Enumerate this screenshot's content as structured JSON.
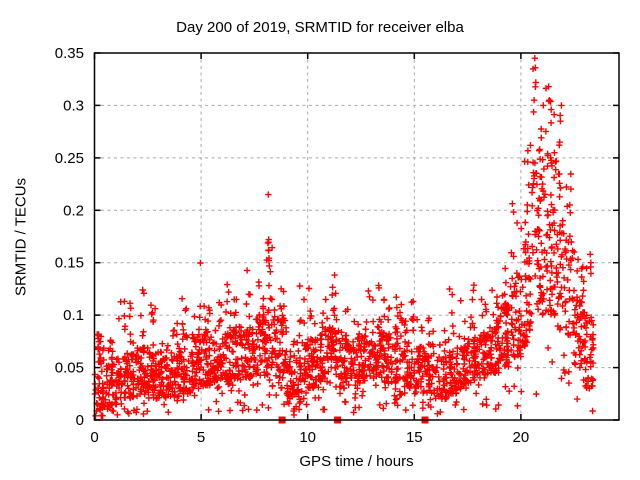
{
  "chart_data": {
    "type": "scatter",
    "title": "Day 200 of 2019, SRMTID for receiver elba",
    "xlabel": "GPS time / hours",
    "ylabel": "SRMTID / TECUs",
    "xlim": [
      0,
      24.6
    ],
    "ylim": [
      0,
      0.35
    ],
    "xticks": [
      0,
      5,
      10,
      15,
      20
    ],
    "xtick_labels": [
      "0",
      "5",
      "10",
      "15",
      "20"
    ],
    "yticks": [
      0,
      0.05,
      0.1,
      0.15,
      0.2,
      0.25,
      0.3,
      0.35
    ],
    "ytick_labels": [
      "0",
      "0.05",
      "0.1",
      "0.15",
      "0.2",
      "0.25",
      "0.3",
      "0.35"
    ],
    "grid": true,
    "grid_style": "dashed",
    "grid_color": "#a8a8a8",
    "legend": "none",
    "background": "#ffffff",
    "border_color": "#000000",
    "marker": {
      "shape": "plus",
      "color": "#ff0000",
      "size": 7
    },
    "seed": 2019200,
    "series": [
      {
        "name": "srmtid-scatter",
        "marker": "plus",
        "color": "#ff0000",
        "comment": "dense band envelope bins: [t_start, t_end, n_points, core_low, core_high, column_max] in hours / TECUs",
        "envelope_bins": [
          [
            0.0,
            0.5,
            55,
            0.008,
            0.075,
            0.085
          ],
          [
            0.5,
            1.0,
            50,
            0.012,
            0.055,
            0.08
          ],
          [
            1.0,
            1.5,
            50,
            0.015,
            0.06,
            0.115
          ],
          [
            1.5,
            2.0,
            50,
            0.02,
            0.065,
            0.12
          ],
          [
            2.0,
            2.5,
            55,
            0.022,
            0.07,
            0.125
          ],
          [
            2.5,
            3.0,
            50,
            0.02,
            0.065,
            0.11
          ],
          [
            3.0,
            3.5,
            50,
            0.02,
            0.06,
            0.1
          ],
          [
            3.5,
            4.0,
            50,
            0.022,
            0.065,
            0.095
          ],
          [
            4.0,
            4.5,
            50,
            0.025,
            0.07,
            0.12
          ],
          [
            4.5,
            5.0,
            55,
            0.03,
            0.08,
            0.15
          ],
          [
            5.0,
            5.5,
            55,
            0.032,
            0.085,
            0.14
          ],
          [
            5.5,
            6.0,
            50,
            0.03,
            0.08,
            0.12
          ],
          [
            6.0,
            6.5,
            55,
            0.033,
            0.085,
            0.13
          ],
          [
            6.5,
            7.0,
            50,
            0.038,
            0.09,
            0.12
          ],
          [
            7.0,
            7.5,
            55,
            0.04,
            0.09,
            0.15
          ],
          [
            7.5,
            8.0,
            55,
            0.042,
            0.1,
            0.155
          ],
          [
            8.0,
            8.5,
            55,
            0.05,
            0.11,
            0.175
          ],
          [
            8.5,
            9.0,
            55,
            0.04,
            0.1,
            0.135
          ],
          [
            9.0,
            9.5,
            45,
            0.02,
            0.06,
            0.09
          ],
          [
            9.5,
            10.0,
            50,
            0.025,
            0.075,
            0.13
          ],
          [
            10.0,
            10.5,
            55,
            0.03,
            0.08,
            0.135
          ],
          [
            10.5,
            11.0,
            50,
            0.035,
            0.085,
            0.12
          ],
          [
            11.0,
            11.5,
            55,
            0.04,
            0.09,
            0.14
          ],
          [
            11.5,
            12.0,
            50,
            0.03,
            0.075,
            0.11
          ],
          [
            12.0,
            12.5,
            50,
            0.03,
            0.07,
            0.1
          ],
          [
            12.5,
            13.0,
            50,
            0.035,
            0.08,
            0.13
          ],
          [
            13.0,
            13.5,
            55,
            0.04,
            0.09,
            0.14
          ],
          [
            13.5,
            14.0,
            50,
            0.035,
            0.085,
            0.12
          ],
          [
            14.0,
            14.5,
            50,
            0.035,
            0.08,
            0.13
          ],
          [
            14.5,
            15.0,
            50,
            0.03,
            0.075,
            0.12
          ],
          [
            15.0,
            15.5,
            50,
            0.025,
            0.07,
            0.1
          ],
          [
            15.5,
            16.0,
            45,
            0.025,
            0.065,
            0.1
          ],
          [
            16.0,
            16.5,
            45,
            0.02,
            0.06,
            0.09
          ],
          [
            16.5,
            17.0,
            50,
            0.025,
            0.065,
            0.14
          ],
          [
            17.0,
            17.5,
            50,
            0.03,
            0.07,
            0.12
          ],
          [
            17.5,
            18.0,
            50,
            0.035,
            0.08,
            0.13
          ],
          [
            18.0,
            18.5,
            50,
            0.04,
            0.085,
            0.12
          ],
          [
            18.5,
            19.0,
            55,
            0.045,
            0.095,
            0.15
          ],
          [
            19.0,
            19.5,
            55,
            0.05,
            0.11,
            0.16
          ],
          [
            19.5,
            20.0,
            55,
            0.06,
            0.14,
            0.22
          ],
          [
            20.0,
            20.5,
            55,
            0.07,
            0.19,
            0.27
          ],
          [
            20.5,
            21.0,
            60,
            0.1,
            0.25,
            0.34
          ],
          [
            21.0,
            21.5,
            60,
            0.1,
            0.26,
            0.33
          ],
          [
            21.5,
            22.0,
            55,
            0.1,
            0.24,
            0.31
          ],
          [
            22.0,
            22.5,
            50,
            0.08,
            0.18,
            0.24
          ],
          [
            22.5,
            23.0,
            50,
            0.05,
            0.12,
            0.165
          ],
          [
            23.0,
            23.4,
            45,
            0.03,
            0.1,
            0.155
          ]
        ],
        "feature_points": [
          [
            8.15,
            0.215
          ],
          [
            8.17,
            0.172
          ],
          [
            8.17,
            0.162
          ],
          [
            8.18,
            0.152
          ],
          [
            8.2,
            0.147
          ],
          [
            20.65,
            0.345
          ],
          [
            20.68,
            0.336
          ],
          [
            20.7,
            0.322
          ],
          [
            20.62,
            0.305
          ],
          [
            21.05,
            0.3
          ],
          [
            21.3,
            0.318
          ],
          [
            21.34,
            0.305
          ],
          [
            21.42,
            0.296
          ],
          [
            20.45,
            0.262
          ],
          [
            21.85,
            0.285
          ],
          [
            21.9,
            0.3
          ],
          [
            23.25,
            0.158
          ],
          [
            23.28,
            0.15
          ]
        ]
      },
      {
        "name": "flag-markers",
        "marker": "filled-square",
        "color": "#ff0000",
        "points": [
          [
            8.8,
            0
          ],
          [
            11.4,
            0
          ],
          [
            15.5,
            0
          ]
        ]
      }
    ]
  }
}
